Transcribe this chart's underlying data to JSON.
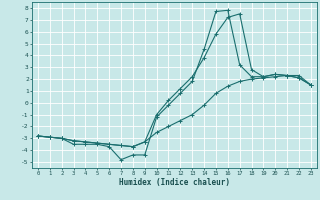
{
  "xlabel": "Humidex (Indice chaleur)",
  "bg_color": "#c8e8e8",
  "grid_color": "#ffffff",
  "line_color": "#1a6e6e",
  "xlim": [
    -0.5,
    23.5
  ],
  "ylim": [
    -5.5,
    8.5
  ],
  "xticks": [
    0,
    1,
    2,
    3,
    4,
    5,
    6,
    7,
    8,
    9,
    10,
    11,
    12,
    13,
    14,
    15,
    16,
    17,
    18,
    19,
    20,
    21,
    22,
    23
  ],
  "yticks": [
    -5,
    -4,
    -3,
    -2,
    -1,
    0,
    1,
    2,
    3,
    4,
    5,
    6,
    7,
    8
  ],
  "line1_x": [
    0,
    1,
    2,
    3,
    4,
    5,
    6,
    7,
    8,
    9,
    10,
    11,
    12,
    13,
    14,
    15,
    16,
    17,
    18,
    19,
    20,
    21,
    22,
    23
  ],
  "line1_y": [
    -2.8,
    -2.9,
    -3.0,
    -3.5,
    -3.5,
    -3.5,
    -3.7,
    -4.8,
    -4.4,
    -4.4,
    -1.2,
    -0.2,
    0.8,
    1.8,
    4.5,
    7.7,
    7.8,
    3.2,
    2.2,
    2.2,
    2.4,
    2.3,
    2.1,
    1.5
  ],
  "line2_x": [
    0,
    1,
    2,
    3,
    4,
    5,
    6,
    7,
    8,
    9,
    10,
    11,
    12,
    13,
    14,
    15,
    16,
    17,
    18,
    19,
    20,
    21,
    22,
    23
  ],
  "line2_y": [
    -2.8,
    -2.9,
    -3.0,
    -3.2,
    -3.3,
    -3.4,
    -3.5,
    -3.6,
    -3.7,
    -3.3,
    -2.5,
    -2.0,
    -1.5,
    -1.0,
    -0.2,
    0.8,
    1.4,
    1.8,
    2.0,
    2.1,
    2.2,
    2.3,
    2.3,
    1.5
  ],
  "line3_x": [
    0,
    1,
    2,
    3,
    4,
    5,
    6,
    7,
    8,
    9,
    10,
    11,
    12,
    13,
    14,
    15,
    16,
    17,
    18,
    19,
    20,
    21,
    22,
    23
  ],
  "line3_y": [
    -2.8,
    -2.9,
    -3.0,
    -3.2,
    -3.3,
    -3.4,
    -3.5,
    -3.6,
    -3.7,
    -3.3,
    -1.0,
    0.2,
    1.2,
    2.2,
    3.8,
    5.8,
    7.2,
    7.5,
    2.8,
    2.2,
    2.4,
    2.3,
    2.1,
    1.5
  ]
}
